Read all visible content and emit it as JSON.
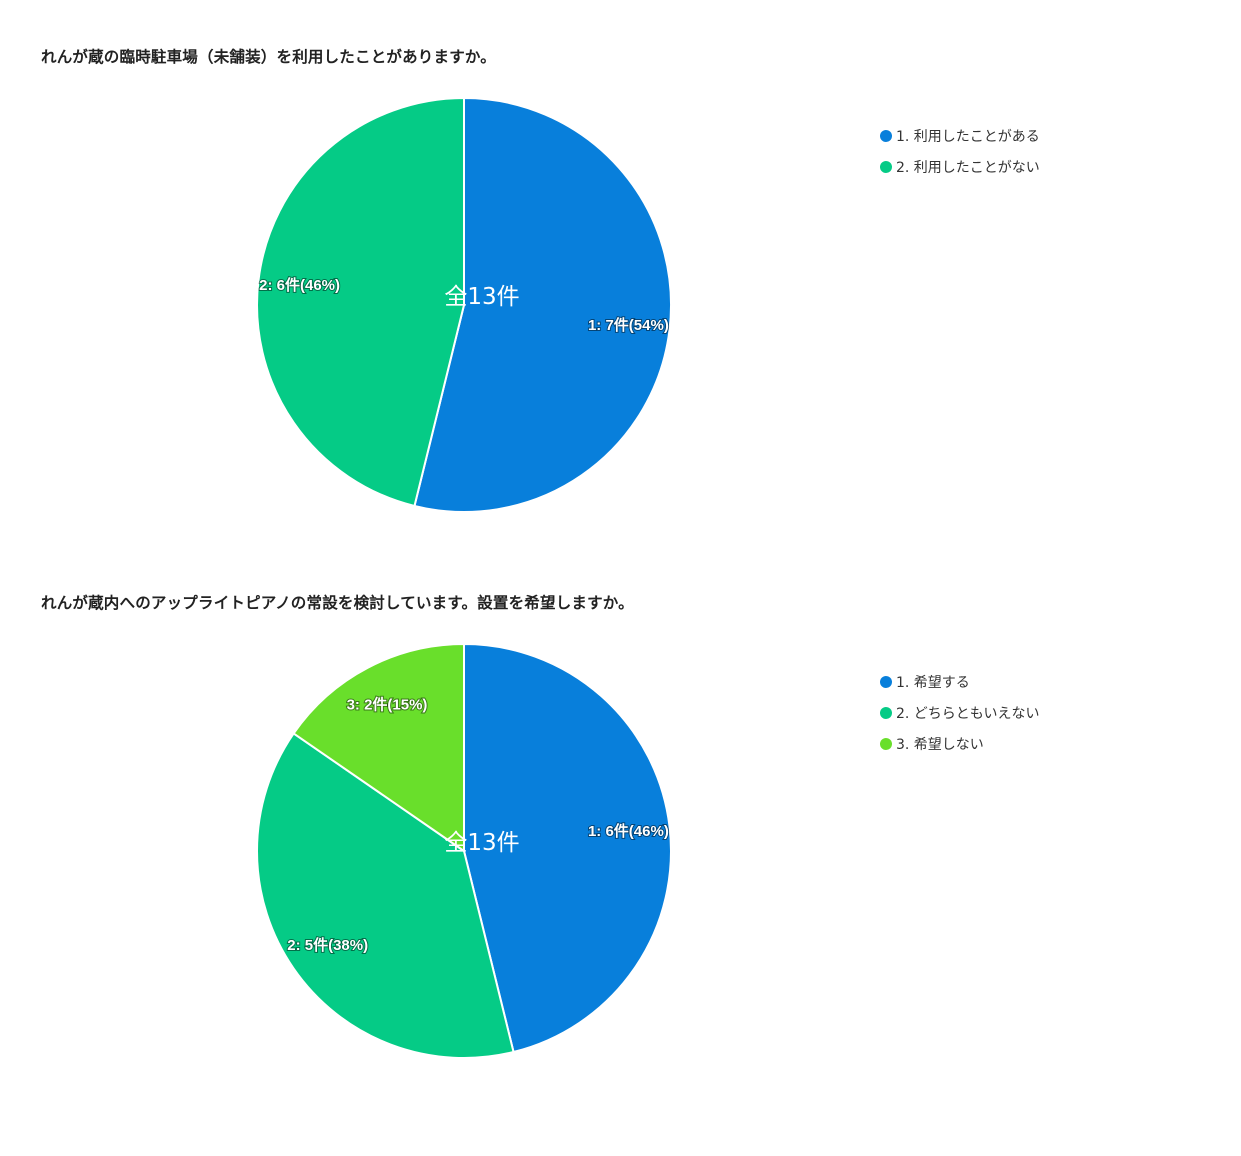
{
  "chart_data": [
    {
      "type": "pie",
      "title": "れんが蔵の臨時駐車場（未舗装）を利用したことがありますか。",
      "total_label": "全13件",
      "categories": [
        "1. 利用したことがある",
        "2. 利用したことがない"
      ],
      "values": [
        7,
        6
      ],
      "percents": [
        54,
        46
      ],
      "slice_labels": [
        "1: 7件(54%)",
        "2: 6件(46%)"
      ],
      "colors": [
        "#087fdb",
        "#05cb86"
      ],
      "legend_position": "right"
    },
    {
      "type": "pie",
      "title": "れんが蔵内へのアップライトピアノの常設を検討しています。設置を希望しますか。",
      "total_label": "全13件",
      "categories": [
        "1. 希望する",
        "2. どちらともいえない",
        "3. 希望しない"
      ],
      "values": [
        6,
        5,
        2
      ],
      "percents": [
        46,
        38,
        15
      ],
      "slice_labels": [
        "1: 6件(46%)",
        "2: 5件(38%)",
        "3: 2件(15%)"
      ],
      "colors": [
        "#087fdb",
        "#05cb86",
        "#69df2b"
      ],
      "legend_position": "right"
    }
  ]
}
